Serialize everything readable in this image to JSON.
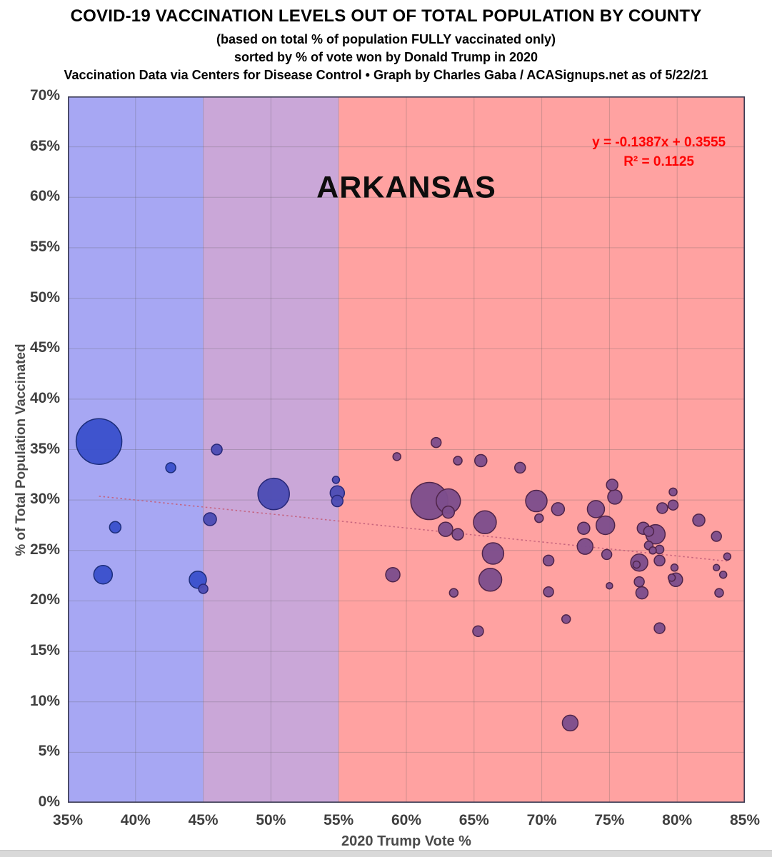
{
  "header": {
    "title": "COVID-19 VACCINATION LEVELS OUT OF TOTAL POPULATION BY COUNTY",
    "subtitle1": "(based on total % of population FULLY vaccinated only)",
    "subtitle2": "sorted by % of vote won by Donald Trump in 2020",
    "subtitle3": "Vaccination Data via Centers for Disease Control • Graph by Charles Gaba / ACASignups.net as of 5/22/21"
  },
  "chart_data": {
    "type": "scatter",
    "state_label": "ARKANSAS",
    "xlabel": "2020 Trump Vote %",
    "ylabel": "% of Total Population Vaccinated",
    "xlim": [
      35,
      85
    ],
    "ylim": [
      0,
      70
    ],
    "x_ticks": [
      "35%",
      "40%",
      "45%",
      "50%",
      "55%",
      "60%",
      "65%",
      "70%",
      "75%",
      "80%",
      "85%"
    ],
    "y_ticks": [
      "0%",
      "5%",
      "10%",
      "15%",
      "20%",
      "25%",
      "30%",
      "35%",
      "40%",
      "45%",
      "50%",
      "55%",
      "60%",
      "65%",
      "70%"
    ],
    "grid_color": "rgba(90,90,90,0.28)",
    "border_color": "#3a3a52",
    "trend": {
      "equation": "y = -0.1387x + 0.3555",
      "r2": "R² = 0.1125",
      "slope": -0.1387,
      "intercept": 0.3555,
      "x_start": 37.3,
      "x_end": 83.7,
      "color": "#c4607b"
    },
    "bands": [
      {
        "from": 35,
        "to": 45,
        "color": "#a7a7f3",
        "label": "blue-lean"
      },
      {
        "from": 45,
        "to": 55,
        "color": "#caa7d8",
        "label": "swing"
      },
      {
        "from": 55,
        "to": 85,
        "color": "#ffa2a1",
        "label": "red-lean"
      }
    ],
    "bubble_colors": [
      {
        "max_x": 45,
        "fill": "#3a50cc",
        "stroke": "#1c2d7a"
      },
      {
        "max_x": 55,
        "fill": "#4c4cb4",
        "stroke": "#282878"
      },
      {
        "max_x": 101,
        "fill": "#7d4e8c",
        "stroke": "#4f2449"
      }
    ],
    "points_format": [
      "trump_vote_pct",
      "fully_vaccinated_pct",
      "bubble_radius_px"
    ],
    "points": [
      [
        37.3,
        35.8,
        32
      ],
      [
        42.6,
        33.2,
        7
      ],
      [
        38.5,
        27.3,
        8
      ],
      [
        37.6,
        22.6,
        13
      ],
      [
        44.6,
        22.1,
        12
      ],
      [
        46.0,
        35.0,
        7.5
      ],
      [
        50.2,
        30.6,
        22
      ],
      [
        45.5,
        28.1,
        9
      ],
      [
        45.0,
        21.2,
        6.5
      ],
      [
        54.8,
        32.0,
        5
      ],
      [
        54.9,
        30.7,
        10
      ],
      [
        54.9,
        29.9,
        8
      ],
      [
        59.3,
        34.3,
        5.5
      ],
      [
        62.2,
        35.7,
        7
      ],
      [
        63.8,
        33.9,
        6
      ],
      [
        65.5,
        33.9,
        8.5
      ],
      [
        68.4,
        33.2,
        7.5
      ],
      [
        61.7,
        29.9,
        26
      ],
      [
        63.1,
        29.9,
        17
      ],
      [
        63.1,
        28.8,
        8.5
      ],
      [
        65.8,
        27.8,
        16
      ],
      [
        62.9,
        27.1,
        10
      ],
      [
        63.8,
        26.6,
        8
      ],
      [
        66.4,
        24.7,
        15
      ],
      [
        59.0,
        22.6,
        10
      ],
      [
        66.2,
        22.1,
        16
      ],
      [
        63.5,
        20.8,
        6
      ],
      [
        65.3,
        17.0,
        7.5
      ],
      [
        69.6,
        29.9,
        15
      ],
      [
        69.8,
        28.2,
        6
      ],
      [
        71.2,
        29.1,
        9
      ],
      [
        70.5,
        24.0,
        7.5
      ],
      [
        70.5,
        20.9,
        7
      ],
      [
        71.8,
        18.2,
        6
      ],
      [
        72.1,
        7.9,
        11
      ],
      [
        73.2,
        25.4,
        11
      ],
      [
        73.1,
        27.2,
        8.5
      ],
      [
        74.0,
        29.1,
        12
      ],
      [
        74.7,
        27.5,
        13
      ],
      [
        74.8,
        24.6,
        7
      ],
      [
        75.0,
        21.5,
        4.5
      ],
      [
        75.2,
        31.5,
        8
      ],
      [
        75.4,
        30.3,
        10
      ],
      [
        77.5,
        27.2,
        8.5
      ],
      [
        77.9,
        26.9,
        7
      ],
      [
        78.4,
        26.6,
        13.5
      ],
      [
        77.9,
        25.5,
        6
      ],
      [
        78.2,
        25.0,
        5
      ],
      [
        78.7,
        25.1,
        6
      ],
      [
        79.7,
        30.8,
        5.5
      ],
      [
        78.9,
        29.2,
        7.5
      ],
      [
        79.7,
        29.5,
        7
      ],
      [
        81.6,
        28.0,
        8.5
      ],
      [
        82.9,
        26.4,
        7
      ],
      [
        83.7,
        24.4,
        5
      ],
      [
        77.2,
        23.8,
        12
      ],
      [
        77.0,
        23.6,
        5
      ],
      [
        78.7,
        24.0,
        7.5
      ],
      [
        79.8,
        23.3,
        5
      ],
      [
        82.9,
        23.3,
        4.5
      ],
      [
        83.4,
        22.6,
        5
      ],
      [
        77.2,
        21.9,
        7
      ],
      [
        79.9,
        22.1,
        9.5
      ],
      [
        79.6,
        22.3,
        5
      ],
      [
        77.4,
        20.8,
        8.5
      ],
      [
        83.1,
        20.8,
        6
      ],
      [
        78.7,
        17.3,
        7.5
      ]
    ]
  }
}
